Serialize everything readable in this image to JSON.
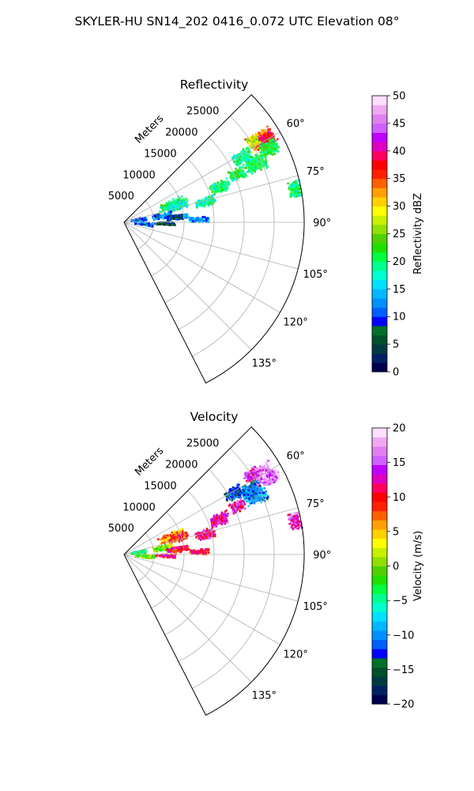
{
  "figure": {
    "suptitle": "SKYLER-HU  SN14_202  0416_0.072 UTC Elevation 08°"
  },
  "chart_data": [
    {
      "type": "heatmap",
      "title": "Reflectivity",
      "projection": "polar-sector",
      "theta_range_deg": [
        45,
        153
      ],
      "r_max_m": 30000,
      "r_ticks": [
        5000,
        10000,
        15000,
        20000,
        25000
      ],
      "r_tick_labels": [
        "5000",
        "10000",
        "15000",
        "20000",
        "25000"
      ],
      "r_label": "Meters",
      "theta_ticks_deg": [
        60,
        75,
        90,
        105,
        120,
        135
      ],
      "theta_tick_labels": [
        "60°",
        "75°",
        "90°",
        "105°",
        "120°",
        "135°"
      ],
      "grid": true,
      "colorbar": {
        "label": "Reflectivity dBZ",
        "range": [
          0,
          50
        ],
        "ticks": [
          0,
          5,
          10,
          15,
          20,
          25,
          30,
          35,
          40,
          45,
          50
        ],
        "tick_labels": [
          "0",
          "5",
          "10",
          "15",
          "20",
          "25",
          "30",
          "35",
          "40",
          "45",
          "50"
        ],
        "colors": [
          "#000050",
          "#002060",
          "#003a40",
          "#00502a",
          "#00702a",
          "#0000ff",
          "#0060ff",
          "#0090ff",
          "#00b8ff",
          "#00e0ff",
          "#00ffd0",
          "#00ff90",
          "#00ff40",
          "#20e000",
          "#50d000",
          "#90e000",
          "#c8f000",
          "#ffff00",
          "#ffd000",
          "#ffa000",
          "#ff6000",
          "#ff2000",
          "#ff0000",
          "#ff0060",
          "#e000c0",
          "#c000ff",
          "#d060ff",
          "#e080f0",
          "#f0a8f0",
          "#ffe0ff"
        ]
      },
      "echo_regions": [
        {
          "theta": 59,
          "r": 26500,
          "dth": 5,
          "dr": 3500,
          "value": 33
        },
        {
          "theta": 60,
          "r": 27500,
          "dth": 4,
          "dr": 2500,
          "value": 38
        },
        {
          "theta": 58,
          "r": 25500,
          "dth": 3,
          "dr": 1500,
          "value": 28
        },
        {
          "theta": 63,
          "r": 27000,
          "dth": 4,
          "dr": 2500,
          "value": 21
        },
        {
          "theta": 66,
          "r": 24000,
          "dth": 5,
          "dr": 3000,
          "value": 20
        },
        {
          "theta": 61,
          "r": 22500,
          "dth": 4,
          "dr": 2500,
          "value": 19
        },
        {
          "theta": 67,
          "r": 20500,
          "dth": 4,
          "dr": 2000,
          "value": 21
        },
        {
          "theta": 79,
          "r": 29000,
          "dth": 4,
          "dr": 1500,
          "value": 20
        },
        {
          "theta": 70,
          "r": 17000,
          "dth": 5,
          "dr": 2500,
          "value": 20
        },
        {
          "theta": 76,
          "r": 14000,
          "dth": 5,
          "dr": 2500,
          "value": 19
        },
        {
          "theta": 70,
          "r": 8500,
          "dth": 8,
          "dr": 3500,
          "value": 20
        },
        {
          "theta": 73,
          "r": 9500,
          "dth": 6,
          "dr": 2500,
          "value": 17
        },
        {
          "theta": 84,
          "r": 9500,
          "dth": 3,
          "dr": 2000,
          "value": 13
        },
        {
          "theta": 81,
          "r": 6500,
          "dth": 6,
          "dr": 2500,
          "value": 12
        },
        {
          "theta": 85,
          "r": 8500,
          "dth": 4,
          "dr": 2000,
          "value": 7
        },
        {
          "theta": 88,
          "r": 12500,
          "dth": 3,
          "dr": 2500,
          "value": 13
        },
        {
          "theta": 82,
          "r": 2500,
          "dth": 10,
          "dr": 2000,
          "value": 12
        },
        {
          "theta": 95,
          "r": 3500,
          "dth": 6,
          "dr": 2500,
          "value": 12
        },
        {
          "theta": 92,
          "r": 7000,
          "dth": 3,
          "dr": 2500,
          "value": 6
        }
      ]
    },
    {
      "type": "heatmap",
      "title": "Velocity",
      "projection": "polar-sector",
      "theta_range_deg": [
        45,
        153
      ],
      "r_max_m": 30000,
      "r_ticks": [
        5000,
        10000,
        15000,
        20000,
        25000
      ],
      "r_tick_labels": [
        "5000",
        "10000",
        "15000",
        "20000",
        "25000"
      ],
      "r_label": "Meters",
      "theta_ticks_deg": [
        60,
        75,
        90,
        105,
        120,
        135
      ],
      "theta_tick_labels": [
        "60°",
        "75°",
        "90°",
        "105°",
        "120°",
        "135°"
      ],
      "grid": true,
      "colorbar": {
        "label": "Velocity (m/s)",
        "range": [
          -20,
          20
        ],
        "ticks": [
          -20,
          -15,
          -10,
          -5,
          0,
          5,
          10,
          15,
          20
        ],
        "tick_labels": [
          "−20",
          "−15",
          "−10",
          "−5",
          "0",
          "5",
          "10",
          "15",
          "20"
        ],
        "colors": [
          "#000050",
          "#002060",
          "#003a40",
          "#00502a",
          "#00702a",
          "#0000ff",
          "#0060ff",
          "#0090ff",
          "#00b8ff",
          "#00e0ff",
          "#00ffd0",
          "#00ff90",
          "#00ff40",
          "#20e000",
          "#50d000",
          "#90e000",
          "#c8f000",
          "#ffff00",
          "#ffd000",
          "#ffa000",
          "#ff6000",
          "#ff2000",
          "#ff0000",
          "#ff0060",
          "#e000c0",
          "#c000ff",
          "#d060ff",
          "#e080f0",
          "#f0a8f0",
          "#ffe0ff"
        ]
      },
      "echo_regions": [
        {
          "theta": 60,
          "r": 26500,
          "dth": 5,
          "dr": 3500,
          "value": 16
        },
        {
          "theta": 62,
          "r": 27500,
          "dth": 4,
          "dr": 2500,
          "value": 17
        },
        {
          "theta": 58,
          "r": 25000,
          "dth": 3,
          "dr": 2000,
          "value": 14
        },
        {
          "theta": 63,
          "r": 23500,
          "dth": 4,
          "dr": 3000,
          "value": -11
        },
        {
          "theta": 66,
          "r": 24000,
          "dth": 5,
          "dr": 3000,
          "value": -10
        },
        {
          "theta": 61,
          "r": 21000,
          "dth": 4,
          "dr": 2500,
          "value": -13
        },
        {
          "theta": 67,
          "r": 20500,
          "dth": 4,
          "dr": 2000,
          "value": 13
        },
        {
          "theta": 79,
          "r": 29000,
          "dth": 4,
          "dr": 1500,
          "value": 14
        },
        {
          "theta": 70,
          "r": 17000,
          "dth": 5,
          "dr": 2500,
          "value": 13
        },
        {
          "theta": 76,
          "r": 14000,
          "dth": 5,
          "dr": 2500,
          "value": 12
        },
        {
          "theta": 70,
          "r": 8500,
          "dth": 8,
          "dr": 3500,
          "value": 6
        },
        {
          "theta": 73,
          "r": 9500,
          "dth": 6,
          "dr": 2500,
          "value": 9
        },
        {
          "theta": 84,
          "r": 9500,
          "dth": 3,
          "dr": 2000,
          "value": 10
        },
        {
          "theta": 81,
          "r": 6500,
          "dth": 6,
          "dr": 2500,
          "value": 1
        },
        {
          "theta": 85,
          "r": 8500,
          "dth": 4,
          "dr": 2000,
          "value": 11
        },
        {
          "theta": 88,
          "r": 12500,
          "dth": 3,
          "dr": 2500,
          "value": 11
        },
        {
          "theta": 82,
          "r": 2500,
          "dth": 10,
          "dr": 2000,
          "value": -3
        },
        {
          "theta": 95,
          "r": 3500,
          "dth": 6,
          "dr": 2500,
          "value": 0
        },
        {
          "theta": 92,
          "r": 7000,
          "dth": 3,
          "dr": 2500,
          "value": 11
        }
      ]
    }
  ]
}
